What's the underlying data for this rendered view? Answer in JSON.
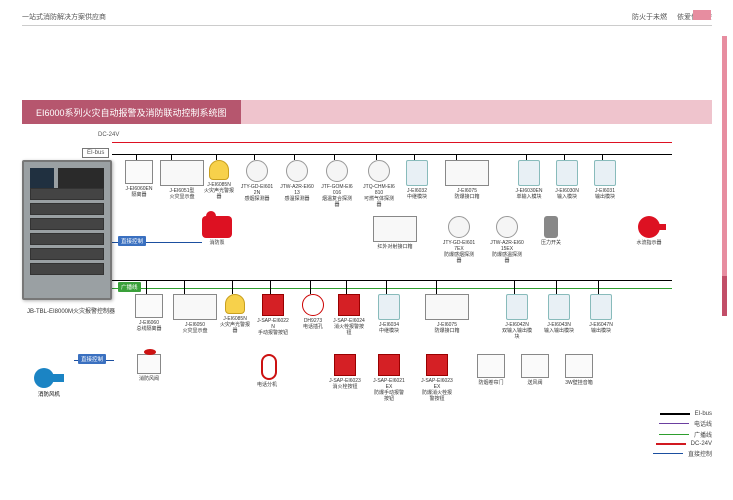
{
  "header": {
    "left_text": "一站式消防解决方案供应商",
    "right_a": "防火于未燃",
    "right_b": "依爱保平安"
  },
  "title": "EI6000系列火灾自动报警及消防联动控制系统图",
  "controller_label": "JB-TBL-EI8000M火灾报警控制器",
  "bus_labels": {
    "eibus": "EI-bus",
    "dc24v": "DC-24V"
  },
  "line_tags": {
    "direct1": "直接控制",
    "broadcast": "广播线",
    "direct2": "直接控制"
  },
  "row1": [
    {
      "code": "J-EI6060EN",
      "name": "隔离器",
      "shape": "box"
    },
    {
      "code": "J-EI6051型",
      "name": "火灾显示盘",
      "shape": "wide"
    },
    {
      "code": "J-EI6085N",
      "name": "火灾声光警报器",
      "shape": "siren"
    },
    {
      "code": "JTY-GD-EI6012N",
      "name": "感烟探测器",
      "shape": "cir"
    },
    {
      "code": "JTW-A2R-EI6013",
      "name": "感温探测器",
      "shape": "cir"
    },
    {
      "code": "JTF-GOM-EI6016",
      "name": "烟温复合探测器",
      "shape": "cir"
    },
    {
      "code": "JTQ-CHM-EI6810",
      "name": "可燃气体探测器",
      "shape": "cir"
    },
    {
      "code": "J-EI6032",
      "name": "中继模块",
      "shape": "module"
    },
    {
      "code": "J-EI6075",
      "name": "防爆接口箱",
      "shape": "wide"
    },
    {
      "code": "J-EI6030EN",
      "name": "单输入模块",
      "shape": "module"
    },
    {
      "code": "J-EI6030N",
      "name": "输入模块",
      "shape": "module"
    },
    {
      "code": "J-EI6031",
      "name": "输出模块",
      "shape": "module"
    }
  ],
  "row1b": [
    {
      "code": "",
      "name": "消防泵",
      "shape": "pump"
    },
    {
      "code": "",
      "name": "红外对射接口箱",
      "shape": "wide"
    },
    {
      "code": "JTY-GD-EI6017EX",
      "name": "防爆感烟探测器",
      "shape": "cir"
    },
    {
      "code": "JTW-A2R-EI6015EX",
      "name": "防爆感温探测器",
      "shape": "cir"
    },
    {
      "code": "",
      "name": "压力开关",
      "shape": "press"
    },
    {
      "code": "",
      "name": "水流指示器",
      "shape": "flow"
    }
  ],
  "row2": [
    {
      "code": "J-EI6060",
      "name": "总线隔离器",
      "shape": "box"
    },
    {
      "code": "J-EI6050",
      "name": "火灾显示盘",
      "shape": "wide"
    },
    {
      "code": "J-EI6085N",
      "name": "火灾声光警报器",
      "shape": "siren"
    },
    {
      "code": "J-SAP-EI6022N",
      "name": "手动报警按钮",
      "shape": "redsq"
    },
    {
      "code": "DH9273",
      "name": "电话插孔",
      "shape": "cir red"
    },
    {
      "code": "J-SAP-EI6024",
      "name": "消火栓报警按钮",
      "shape": "redsq"
    },
    {
      "code": "J-EI6034",
      "name": "中继模块",
      "shape": "module"
    },
    {
      "code": "J-EI6075",
      "name": "防爆接口箱",
      "shape": "wide"
    },
    {
      "code": "J-EI6042N",
      "name": "双输入输出模块",
      "shape": "module"
    },
    {
      "code": "J-EI6043N",
      "name": "输入输出模块",
      "shape": "module"
    },
    {
      "code": "J-EI6047N",
      "name": "输出模块",
      "shape": "module"
    }
  ],
  "row2b": [
    {
      "code": "",
      "name": "消防风阀",
      "shape": "valve"
    },
    {
      "code": "",
      "name": "电话分机",
      "shape": "phone"
    },
    {
      "code": "J-SAP-EI6023",
      "name": "消火栓按钮",
      "shape": "redsq"
    },
    {
      "code": "J-SAP-EI6021EX",
      "name": "防爆手动报警按钮",
      "shape": "redsq"
    },
    {
      "code": "J-SAP-EI6023EX",
      "name": "防爆消火栓报警按钮",
      "shape": "redsq"
    },
    {
      "code": "",
      "name": "防烟卷帘门",
      "shape": "box"
    },
    {
      "code": "",
      "name": "送风阀",
      "shape": "box"
    },
    {
      "code": "",
      "name": "3W壁挂音箱",
      "shape": "box"
    }
  ],
  "fan_label": "消防风机",
  "legend": [
    {
      "label": "EI-bus",
      "color": "#000000"
    },
    {
      "label": "电话线",
      "color": "#6b3fa0"
    },
    {
      "label": "广播线",
      "color": "#2e9e2e"
    },
    {
      "label": "DC-24V",
      "color": "#d11920"
    },
    {
      "label": "直接控制",
      "color": "#1b4fa0"
    }
  ],
  "colors": {
    "title_band": "#efc4cd",
    "title_inner": "#b6566e",
    "accent": "#e78da0",
    "fan": "#1b84c4",
    "pump": "#d11920",
    "siren": "#f7d14b",
    "manual": "#d52025"
  }
}
